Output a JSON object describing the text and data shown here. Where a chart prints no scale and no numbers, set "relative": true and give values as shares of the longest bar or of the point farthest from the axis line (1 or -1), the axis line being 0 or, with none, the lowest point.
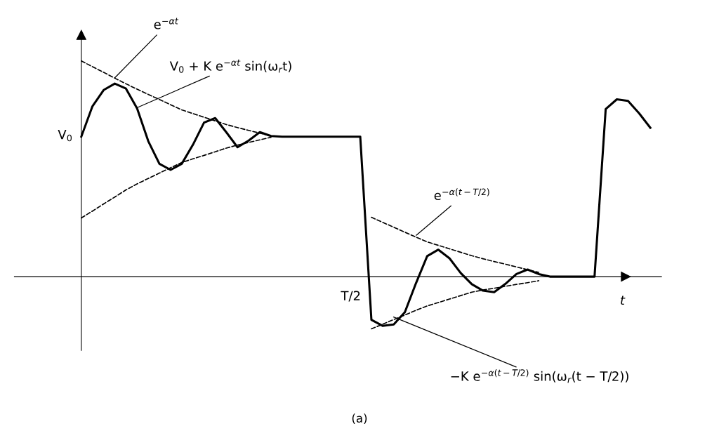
{
  "chart_data": {
    "type": "line",
    "relative": true,
    "grid": false,
    "legend": false,
    "xlabel": "t",
    "categories": [
      null,
      null,
      null,
      null,
      null,
      null,
      null,
      null,
      null,
      null,
      null,
      null,
      null,
      null,
      null,
      null,
      null,
      null,
      null,
      null,
      null,
      null,
      null,
      null,
      null,
      null,
      null,
      null,
      null,
      null,
      null,
      null,
      null,
      null,
      null,
      null,
      null,
      null,
      null,
      null,
      null,
      null,
      null,
      null,
      null,
      null,
      null,
      null,
      null,
      null,
      null,
      null
    ],
    "series": [
      {
        "color": "#000000",
        "line_style": "solid",
        "values": [
          0.649,
          0.79,
          0.865,
          0.895,
          0.872,
          0.78,
          0.628,
          0.523,
          0.495,
          0.523,
          0.611,
          0.714,
          0.735,
          0.669,
          0.6,
          0.631,
          0.67,
          0.652,
          0.649,
          0.649,
          0.649,
          0.649,
          0.649,
          0.649,
          0.649,
          0.649,
          -0.2,
          -0.228,
          -0.222,
          -0.165,
          -0.03,
          0.095,
          0.125,
          0.085,
          0.017,
          -0.035,
          -0.065,
          -0.072,
          -0.034,
          0.012,
          0.033,
          0.012,
          0,
          0,
          0,
          0,
          0,
          0.777,
          0.822,
          0.815,
          0.757,
          0.69
        ]
      },
      {
        "color": "#000000",
        "line_style": "dashed",
        "values": [
          1.0,
          0.973,
          0.947,
          0.92,
          0.894,
          0.869,
          0.845,
          0.821,
          0.797,
          0.773,
          0.756,
          0.739,
          0.722,
          0.705,
          0.691,
          0.678,
          0.665,
          0.652,
          null,
          null,
          null,
          null,
          null,
          null,
          null,
          null,
          null,
          null,
          null,
          null,
          null,
          null,
          null,
          null,
          null,
          null,
          null,
          null,
          null,
          null,
          null,
          null,
          null,
          null,
          null,
          null,
          null,
          null,
          null,
          null,
          null,
          null
        ]
      },
      {
        "color": "#000000",
        "line_style": "dashed",
        "values": [
          0.272,
          0.304,
          0.337,
          0.369,
          0.402,
          0.43,
          0.455,
          0.48,
          0.505,
          0.529,
          0.546,
          0.562,
          0.579,
          0.596,
          0.61,
          0.622,
          0.634,
          0.646,
          null,
          null,
          null,
          null,
          null,
          null,
          null,
          null,
          null,
          null,
          null,
          null,
          null,
          null,
          null,
          null,
          null,
          null,
          null,
          null,
          null,
          null,
          null,
          null,
          null,
          null,
          null,
          null,
          null,
          null,
          null,
          null,
          null,
          null
        ]
      },
      {
        "color": "#000000",
        "line_style": "dashed",
        "values": [
          null,
          null,
          null,
          null,
          null,
          null,
          null,
          null,
          null,
          null,
          null,
          null,
          null,
          null,
          null,
          null,
          null,
          null,
          null,
          null,
          null,
          null,
          null,
          null,
          null,
          null,
          0.275,
          0.252,
          0.229,
          0.206,
          0.183,
          0.161,
          0.145,
          0.129,
          0.113,
          0.097,
          0.083,
          0.07,
          0.058,
          0.045,
          0.032,
          0.02,
          null,
          null,
          null,
          null,
          null,
          null,
          null,
          null,
          null,
          null
        ]
      },
      {
        "color": "#000000",
        "line_style": "dashed",
        "values": [
          null,
          null,
          null,
          null,
          null,
          null,
          null,
          null,
          null,
          null,
          null,
          null,
          null,
          null,
          null,
          null,
          null,
          null,
          null,
          null,
          null,
          null,
          null,
          null,
          null,
          null,
          -0.242,
          -0.221,
          -0.199,
          -0.178,
          -0.156,
          -0.136,
          -0.12,
          -0.104,
          -0.088,
          -0.072,
          -0.062,
          -0.054,
          -0.045,
          -0.036,
          -0.028,
          -0.019,
          null,
          null,
          null,
          null,
          null,
          null,
          null,
          null,
          null,
          null
        ]
      }
    ],
    "annotations": [
      "e$^{−αt}$",
      "V$_{0}$ + K e$^{−αt}$ sin(ω$_{r}$t)",
      "e$^{−α(t−T/2)}$",
      "−K e$^{−α(t−T/2)}$ sin(ω$_{r}$(t − T/2))",
      "V$_{0}$",
      "T/2",
      "(a)"
    ]
  }
}
